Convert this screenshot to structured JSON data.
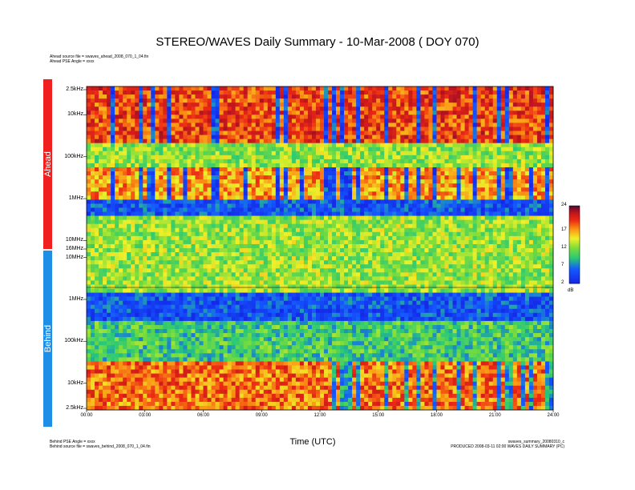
{
  "title": "STEREO/WAVES Daily Summary - 10-Mar-2008 ( DOY 070)",
  "header_left": [
    "Ahead source file = swaves_ahead_2008_070_1_04.fin",
    "Ahead PSE Angle = xxxx"
  ],
  "footer_left": [
    "Behind PSE Angle = xxxx",
    "Behind source file = swaves_behind_2008_070_1_04.fin"
  ],
  "footer_right": [
    "swaves_summary_20080310_c",
    "PRODUCED 2008-03-11 02:00 WAVES DAILY SUMMARY (PC)"
  ],
  "sidebar": {
    "ahead_label": "Ahead",
    "behind_label": "Behind",
    "ahead_color": "#f02020",
    "behind_color": "#1e8ee6"
  },
  "chart_data": {
    "type": "heatmap",
    "title": "STEREO/WAVES Daily Summary - 10-Mar-2008 ( DOY 070)",
    "xlabel": "Time (UTC)",
    "x_ticks": [
      "00:00",
      "03:00",
      "06:00",
      "09:00",
      "12:00",
      "15:00",
      "18:00",
      "21:00",
      "24:00"
    ],
    "xlim_hours": [
      0,
      24
    ],
    "panels": [
      {
        "name": "Ahead",
        "y_ticks": [
          "2.5kHz",
          "10kHz",
          "100kHz",
          "1MHz",
          "10MHz",
          "16MHz"
        ],
        "scale": "log"
      },
      {
        "name": "Behind",
        "y_ticks": [
          "10MHz",
          "1MHz",
          "100kHz",
          "10kHz",
          "2.5kHz"
        ],
        "scale": "log"
      }
    ],
    "colorbar": {
      "unit": "dB",
      "ticks": [
        2,
        7,
        12,
        17,
        24
      ],
      "range": [
        2,
        24
      ]
    }
  }
}
